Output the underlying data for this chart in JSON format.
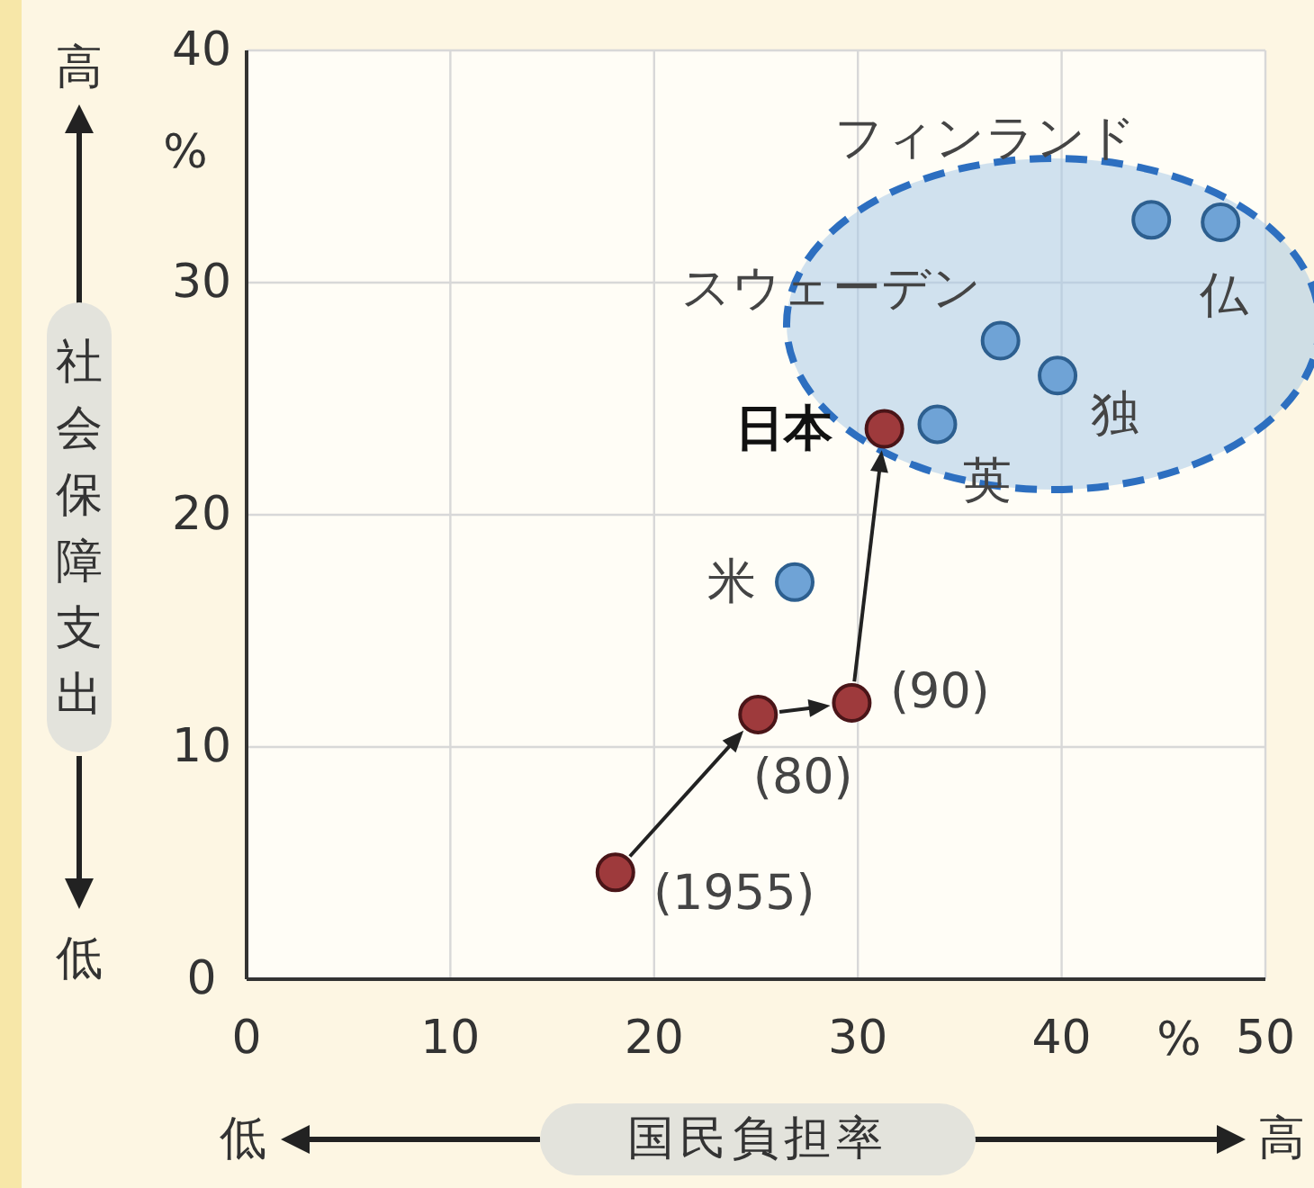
{
  "chart_data": {
    "type": "scatter",
    "xlabel": "国民負担率",
    "ylabel": "社会保障支出",
    "xlim": [
      0,
      50
    ],
    "ylim": [
      0,
      40
    ],
    "xticks": [
      0,
      10,
      20,
      30,
      40,
      50
    ],
    "yticks": [
      0,
      10,
      20,
      30,
      40
    ],
    "grid": true,
    "marker": "circle",
    "series": [
      {
        "color": "#6fa3d6",
        "x": [
          26.9,
          33.9,
          37.0,
          39.8,
          44.4,
          47.8
        ],
        "values": [
          17.1,
          23.9,
          27.5,
          26.0,
          32.7,
          32.6
        ]
      },
      {
        "color": "#9e3a3c",
        "x": [
          18.1,
          25.1,
          29.7,
          31.3
        ],
        "values": [
          4.6,
          11.4,
          11.9,
          23.7
        ]
      }
    ],
    "annotations": [
      {
        "text": "米",
        "x": 26.9,
        "y": 17.1
      },
      {
        "text": "英",
        "x": 33.9,
        "y": 23.9
      },
      {
        "text": "スウェーデン",
        "x": 37.0,
        "y": 27.5
      },
      {
        "text": "独",
        "x": 39.8,
        "y": 26.0
      },
      {
        "text": "フィンランド",
        "x": 44.4,
        "y": 32.7
      },
      {
        "text": "仏",
        "x": 47.8,
        "y": 32.6
      },
      {
        "text": "(1955)",
        "x": 18.1,
        "y": 4.6
      },
      {
        "text": "(80)",
        "x": 25.1,
        "y": 11.4
      },
      {
        "text": "(90)",
        "x": 29.7,
        "y": 11.9
      },
      {
        "text": "日本",
        "x": 31.3,
        "y": 23.7
      },
      "%",
      "%",
      "高",
      "低",
      "低",
      "高"
    ]
  }
}
